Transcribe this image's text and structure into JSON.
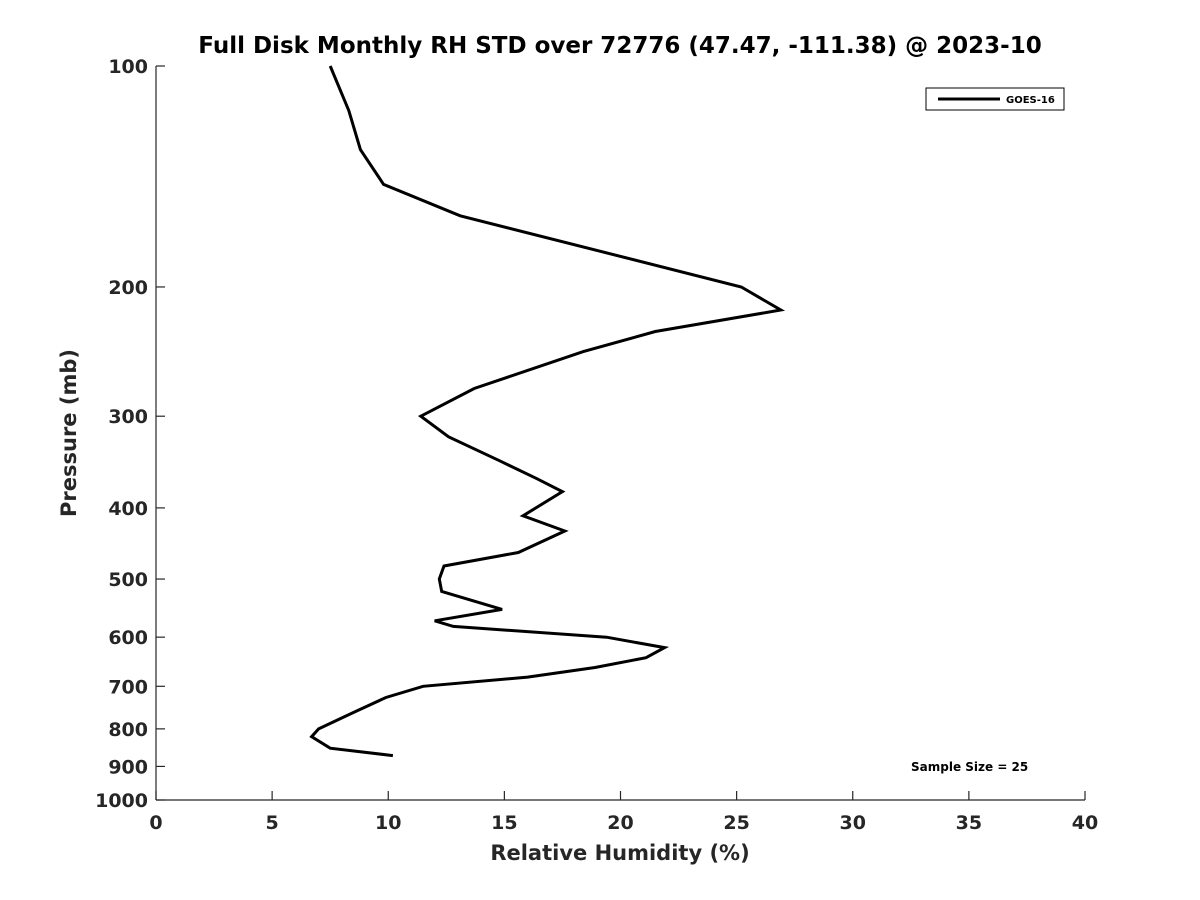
{
  "chart_data": {
    "type": "line",
    "title": "Full Disk Monthly RH STD over 72776 (47.47, -111.38) @ 2023-10",
    "xlabel": "Relative Humidity (%)",
    "ylabel": "Pressure (mb)",
    "xlim": [
      0,
      40
    ],
    "ylim": [
      1000,
      100
    ],
    "y_scale": "log",
    "y_reversed": true,
    "x_ticks": [
      0,
      5,
      10,
      15,
      20,
      25,
      30,
      35,
      40
    ],
    "x_tick_labels": [
      "0",
      "5",
      "10",
      "15",
      "20",
      "25",
      "30",
      "35",
      "40"
    ],
    "y_ticks": [
      100,
      200,
      300,
      400,
      500,
      600,
      700,
      800,
      900,
      1000
    ],
    "y_tick_labels": [
      "100",
      "200",
      "300",
      "400",
      "500",
      "600",
      "700",
      "800",
      "900",
      "1000"
    ],
    "grid": false,
    "legend": {
      "position": "top-right",
      "entries": [
        "GOES-16"
      ]
    },
    "annotation": "Sample Size = 25",
    "series": [
      {
        "name": "GOES-16",
        "color": "#000000",
        "x": [
          7.5,
          8.3,
          8.8,
          9.8,
          13.1,
          25.2,
          26.9,
          21.5,
          18.4,
          13.7,
          11.4,
          12.6,
          14.8,
          16.4,
          17.5,
          15.8,
          17.6,
          15.6,
          12.4,
          12.2,
          12.3,
          14.9,
          12.0,
          12.8,
          19.4,
          21.9,
          21.1,
          18.9,
          16.0,
          11.5,
          9.9,
          8.5,
          7.0,
          6.7,
          7.5,
          10.2
        ],
        "y": [
          100,
          115,
          130,
          145,
          160,
          200,
          215,
          230,
          245,
          275,
          300,
          320,
          345,
          365,
          380,
          410,
          430,
          460,
          480,
          500,
          520,
          550,
          570,
          580,
          600,
          620,
          640,
          660,
          680,
          700,
          725,
          760,
          800,
          820,
          850,
          870
        ]
      }
    ]
  }
}
